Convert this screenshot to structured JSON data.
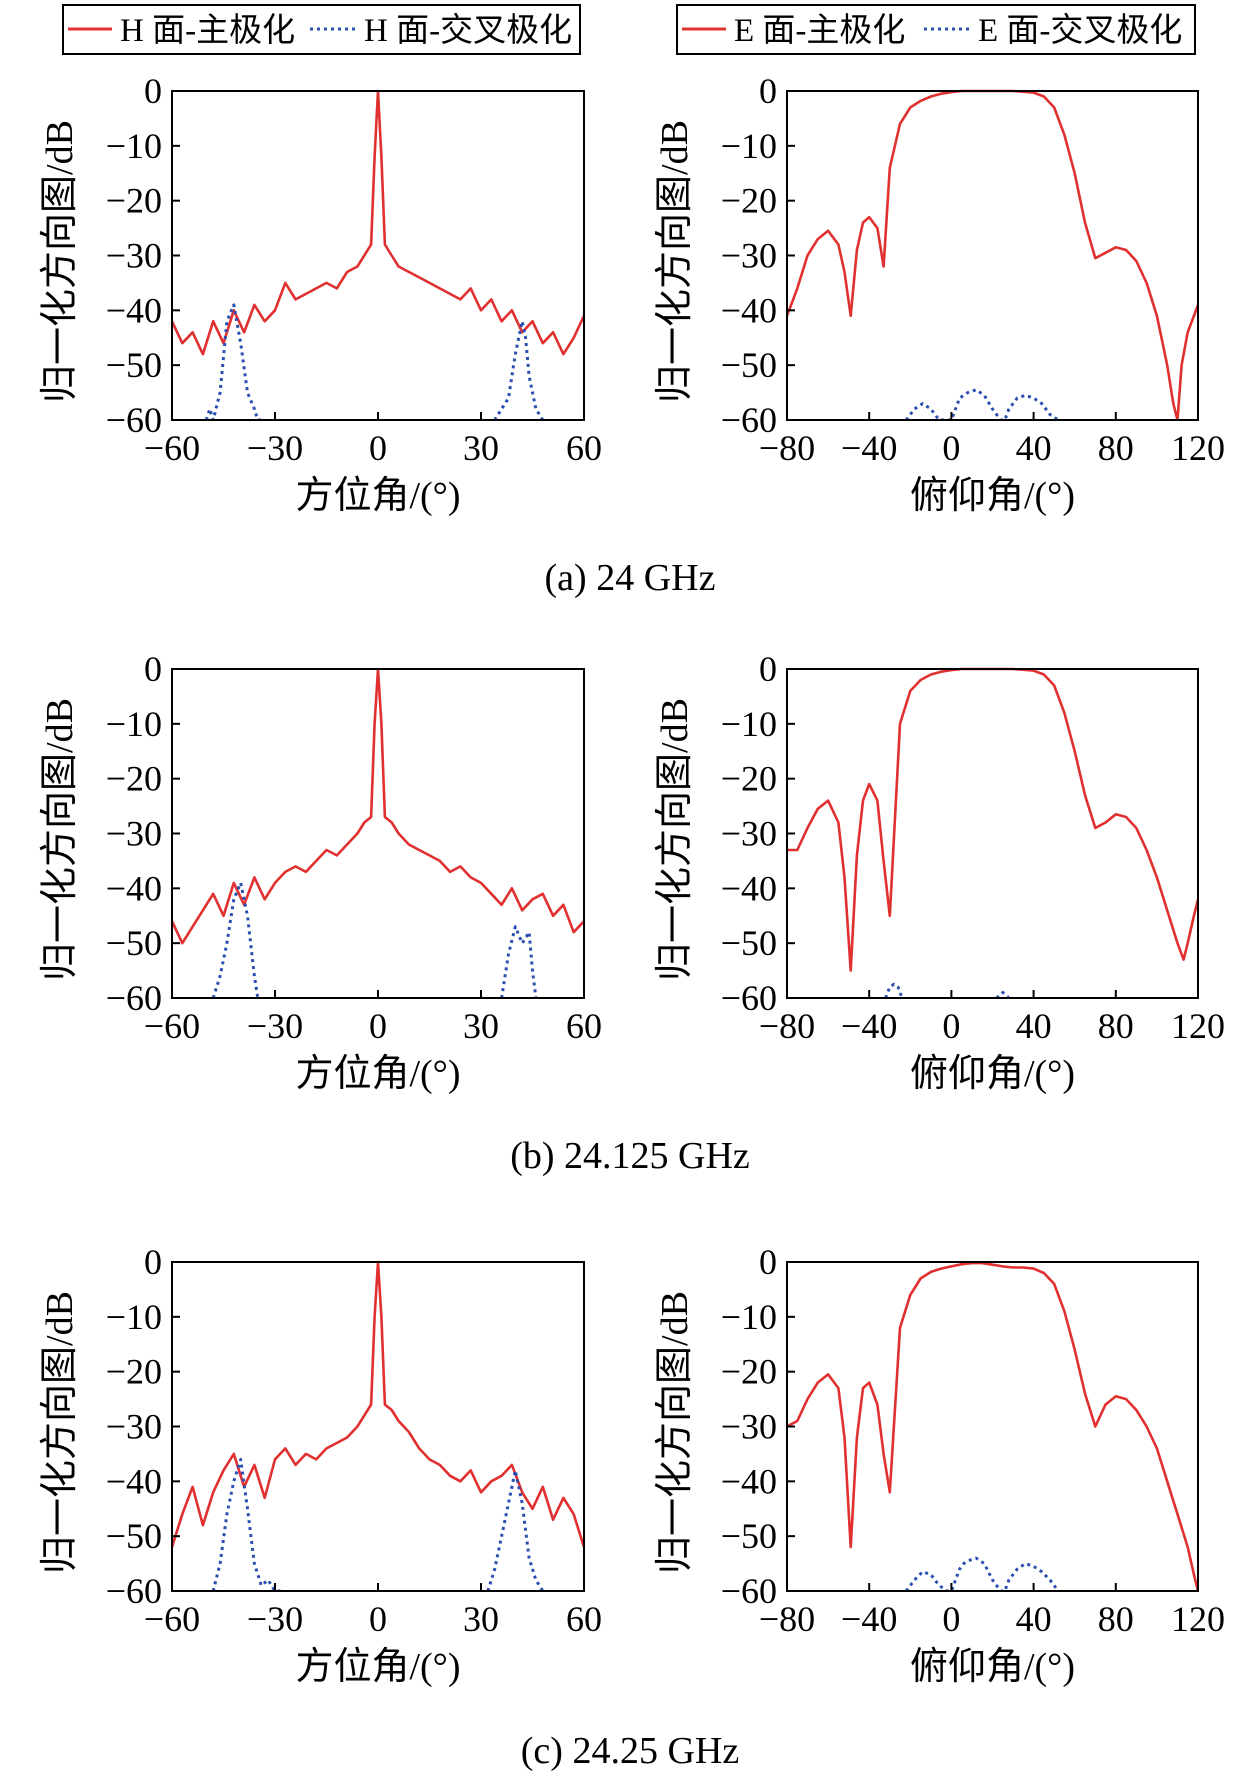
{
  "legend_h": {
    "main_label": "H 面-主极化",
    "cross_label": "H 面-交叉极化"
  },
  "legend_e": {
    "main_label": "E 面-主极化",
    "cross_label": "E 面-交叉极化"
  },
  "colors": {
    "main": "#e03030",
    "cross": "#2a4fb0"
  },
  "chart_data": [
    {
      "id": "a-h",
      "type": "line",
      "caption": "(a) 24 GHz",
      "xlabel": "方位角/(°)",
      "ylabel": "归一化方向图/dB",
      "xlim": [
        -60,
        60
      ],
      "ylim": [
        -60,
        0
      ],
      "xticks": [
        -60,
        -30,
        0,
        30,
        60
      ],
      "yticks": [
        0,
        -10,
        -20,
        -30,
        -40,
        -50,
        -60
      ],
      "series": [
        {
          "name": "H 面-主极化",
          "style": "solid",
          "x": [
            -60,
            -57,
            -54,
            -51,
            -48,
            -45,
            -42,
            -39,
            -36,
            -33,
            -30,
            -27,
            -24,
            -21,
            -18,
            -15,
            -12,
            -9,
            -6,
            -4,
            -2,
            -1,
            0,
            1,
            2,
            4,
            6,
            9,
            12,
            15,
            18,
            21,
            24,
            27,
            30,
            33,
            36,
            39,
            42,
            45,
            48,
            51,
            54,
            57,
            60
          ],
          "y": [
            -42,
            -46,
            -44,
            -48,
            -42,
            -46,
            -40,
            -44,
            -39,
            -42,
            -40,
            -35,
            -38,
            -37,
            -36,
            -35,
            -36,
            -33,
            -32,
            -30,
            -28,
            -12,
            0,
            -12,
            -28,
            -30,
            -32,
            -33,
            -34,
            -35,
            -36,
            -37,
            -38,
            -36,
            -40,
            -38,
            -42,
            -40,
            -44,
            -42,
            -46,
            -44,
            -48,
            -45,
            -41
          ]
        },
        {
          "name": "H 面-交叉极化",
          "style": "dotted",
          "x": [
            -50,
            -49,
            -48,
            -46,
            -44,
            -42,
            -40,
            -38,
            -36,
            -35,
            -34
          ],
          "y": [
            -60,
            -58,
            -60,
            -55,
            -42,
            -39,
            -46,
            -55,
            -58,
            -60,
            -60
          ]
        },
        {
          "name": "H 面-交叉极化",
          "style": "dotted",
          "x": [
            34,
            36,
            38,
            40,
            42,
            43,
            44,
            46,
            48
          ],
          "y": [
            -60,
            -58,
            -56,
            -48,
            -42,
            -45,
            -52,
            -58,
            -60
          ]
        }
      ]
    },
    {
      "id": "a-e",
      "type": "line",
      "caption": "",
      "xlabel": "俯仰角/(°)",
      "ylabel": "归一化方向图/dB",
      "xlim": [
        -80,
        120
      ],
      "ylim": [
        -60,
        0
      ],
      "xticks": [
        -80,
        -40,
        0,
        40,
        80,
        120
      ],
      "yticks": [
        0,
        -10,
        -20,
        -30,
        -40,
        -50,
        -60
      ],
      "series": [
        {
          "name": "E 面-主极化",
          "style": "solid",
          "x": [
            -80,
            -75,
            -70,
            -65,
            -60,
            -55,
            -52,
            -49,
            -46,
            -43,
            -40,
            -36,
            -33,
            -30,
            -25,
            -20,
            -15,
            -10,
            -5,
            0,
            5,
            10,
            20,
            30,
            40,
            45,
            50,
            55,
            60,
            65,
            70,
            75,
            80,
            85,
            90,
            95,
            100,
            105,
            108,
            110,
            112,
            115,
            120
          ],
          "y": [
            -41,
            -36,
            -30,
            -27,
            -25.5,
            -28,
            -33,
            -41,
            -29,
            -24,
            -23,
            -25,
            -32,
            -14,
            -6,
            -3,
            -1.8,
            -1,
            -0.5,
            -0.2,
            0,
            0,
            0,
            0,
            -0.3,
            -1,
            -3,
            -8,
            -15,
            -24,
            -30.5,
            -29.5,
            -28.5,
            -29,
            -31,
            -35,
            -41,
            -50,
            -57,
            -60,
            -50,
            -44,
            -39
          ]
        },
        {
          "name": "E 面-交叉极化",
          "style": "dotted",
          "x": [
            -22,
            -18,
            -14,
            -10,
            -6,
            -2,
            0,
            2,
            4,
            6,
            8,
            12,
            16,
            20,
            24,
            26,
            28,
            32,
            36,
            40,
            44,
            48,
            52
          ],
          "y": [
            -60,
            -58,
            -57,
            -58,
            -60,
            -60,
            -60,
            -58,
            -56,
            -55.5,
            -55,
            -54.5,
            -55.5,
            -58,
            -60,
            -60,
            -58,
            -56,
            -55.5,
            -56,
            -57,
            -59,
            -60
          ]
        }
      ]
    },
    {
      "id": "b-h",
      "type": "line",
      "caption": "(b) 24.125 GHz",
      "xlabel": "方位角/(°)",
      "ylabel": "归一化方向图/dB",
      "xlim": [
        -60,
        60
      ],
      "ylim": [
        -60,
        0
      ],
      "xticks": [
        -60,
        -30,
        0,
        30,
        60
      ],
      "yticks": [
        0,
        -10,
        -20,
        -30,
        -40,
        -50,
        -60
      ],
      "series": [
        {
          "name": "H 面-主极化",
          "style": "solid",
          "x": [
            -60,
            -57,
            -54,
            -51,
            -48,
            -45,
            -42,
            -39,
            -36,
            -33,
            -30,
            -27,
            -24,
            -21,
            -18,
            -15,
            -12,
            -9,
            -6,
            -4,
            -2,
            -1,
            0,
            1,
            2,
            4,
            6,
            9,
            12,
            15,
            18,
            21,
            24,
            27,
            30,
            33,
            36,
            39,
            42,
            45,
            48,
            51,
            54,
            57,
            60
          ],
          "y": [
            -46,
            -50,
            -47,
            -44,
            -41,
            -45,
            -39,
            -43,
            -38,
            -42,
            -39,
            -37,
            -36,
            -37,
            -35,
            -33,
            -34,
            -32,
            -30,
            -28,
            -27,
            -10,
            0,
            -10,
            -27,
            -28,
            -30,
            -32,
            -33,
            -34,
            -35,
            -37,
            -36,
            -38,
            -39,
            -41,
            -43,
            -40,
            -44,
            -42,
            -41,
            -45,
            -43,
            -48,
            -46
          ]
        },
        {
          "name": "H 面-交叉极化",
          "style": "dotted",
          "x": [
            -48,
            -46,
            -44,
            -42,
            -40,
            -38,
            -36,
            -35
          ],
          "y": [
            -60,
            -56,
            -50,
            -42,
            -39,
            -45,
            -56,
            -60
          ]
        },
        {
          "name": "H 面-交叉极化",
          "style": "dotted",
          "x": [
            36,
            38,
            40,
            42,
            44,
            45,
            46
          ],
          "y": [
            -60,
            -52,
            -47,
            -50,
            -48,
            -55,
            -60
          ]
        }
      ]
    },
    {
      "id": "b-e",
      "type": "line",
      "caption": "",
      "xlabel": "俯仰角/(°)",
      "ylabel": "归一化方向图/dB",
      "xlim": [
        -80,
        120
      ],
      "ylim": [
        -60,
        0
      ],
      "xticks": [
        -80,
        -40,
        0,
        40,
        80,
        120
      ],
      "yticks": [
        0,
        -10,
        -20,
        -30,
        -40,
        -50,
        -60
      ],
      "series": [
        {
          "name": "E 面-主极化",
          "style": "solid",
          "x": [
            -80,
            -75,
            -70,
            -65,
            -60,
            -55,
            -52,
            -49,
            -46,
            -43,
            -40,
            -36,
            -33,
            -30,
            -25,
            -20,
            -15,
            -10,
            -5,
            0,
            5,
            10,
            20,
            30,
            40,
            45,
            50,
            55,
            60,
            65,
            70,
            75,
            80,
            85,
            90,
            95,
            100,
            105,
            110,
            113,
            115,
            118,
            120
          ],
          "y": [
            -33,
            -33,
            -29,
            -25.5,
            -24,
            -28,
            -38,
            -55,
            -34,
            -24,
            -21,
            -24,
            -35,
            -45,
            -10,
            -4,
            -2,
            -1,
            -0.5,
            -0.2,
            0,
            0,
            0,
            0,
            -0.3,
            -1,
            -3,
            -8,
            -15,
            -23,
            -29,
            -28,
            -26.5,
            -27,
            -29,
            -33,
            -38,
            -44,
            -50,
            -53,
            -50,
            -45,
            -42
          ]
        },
        {
          "name": "E 面-交叉极化",
          "style": "dotted",
          "x": [
            -32,
            -30,
            -28,
            -26,
            -24
          ],
          "y": [
            -60,
            -58,
            -57.5,
            -58,
            -60
          ]
        },
        {
          "name": "E 面-交叉极化",
          "style": "dotted",
          "x": [
            22,
            25,
            28
          ],
          "y": [
            -60,
            -59,
            -60
          ]
        }
      ]
    },
    {
      "id": "c-h",
      "type": "line",
      "caption": "(c) 24.25 GHz",
      "xlabel": "方位角/(°)",
      "ylabel": "归一化方向图/dB",
      "xlim": [
        -60,
        60
      ],
      "ylim": [
        -60,
        0
      ],
      "xticks": [
        -60,
        -30,
        0,
        30,
        60
      ],
      "yticks": [
        0,
        -10,
        -20,
        -30,
        -40,
        -50,
        -60
      ],
      "series": [
        {
          "name": "H 面-主极化",
          "style": "solid",
          "x": [
            -60,
            -57,
            -54,
            -51,
            -48,
            -45,
            -42,
            -39,
            -36,
            -33,
            -30,
            -27,
            -24,
            -21,
            -18,
            -15,
            -12,
            -9,
            -6,
            -4,
            -2,
            -1,
            0,
            1,
            2,
            4,
            6,
            9,
            12,
            15,
            18,
            21,
            24,
            27,
            30,
            33,
            36,
            39,
            42,
            45,
            48,
            51,
            54,
            57,
            60
          ],
          "y": [
            -52,
            -46,
            -41,
            -48,
            -42,
            -38,
            -35,
            -41,
            -37,
            -43,
            -36,
            -34,
            -37,
            -35,
            -36,
            -34,
            -33,
            -32,
            -30,
            -28,
            -26,
            -10,
            0,
            -10,
            -26,
            -27,
            -29,
            -31,
            -34,
            -36,
            -37,
            -39,
            -40,
            -38,
            -42,
            -40,
            -39,
            -37,
            -42,
            -45,
            -41,
            -47,
            -43,
            -46,
            -52
          ]
        },
        {
          "name": "H 面-交叉极化",
          "style": "dotted",
          "x": [
            -48,
            -46,
            -44,
            -42,
            -40,
            -38,
            -36,
            -34,
            -32,
            -30,
            -28
          ],
          "y": [
            -60,
            -55,
            -46,
            -40,
            -36,
            -45,
            -55,
            -59,
            -58,
            -60,
            -60
          ]
        },
        {
          "name": "H 面-交叉极化",
          "style": "dotted",
          "x": [
            32,
            34,
            36,
            38,
            40,
            42,
            44,
            46,
            48
          ],
          "y": [
            -60,
            -56,
            -50,
            -44,
            -38,
            -44,
            -54,
            -58,
            -60
          ]
        }
      ]
    },
    {
      "id": "c-e",
      "type": "line",
      "caption": "",
      "xlabel": "俯仰角/(°)",
      "ylabel": "归一化方向图/dB",
      "xlim": [
        -80,
        120
      ],
      "ylim": [
        -60,
        0
      ],
      "xticks": [
        -80,
        -40,
        0,
        40,
        80,
        120
      ],
      "yticks": [
        0,
        -10,
        -20,
        -30,
        -40,
        -50,
        -60
      ],
      "series": [
        {
          "name": "E 面-主极化",
          "style": "solid",
          "x": [
            -80,
            -75,
            -70,
            -65,
            -60,
            -55,
            -52,
            -49,
            -46,
            -43,
            -40,
            -36,
            -33,
            -30,
            -25,
            -20,
            -15,
            -10,
            -5,
            0,
            5,
            10,
            15,
            20,
            25,
            30,
            35,
            40,
            45,
            50,
            55,
            60,
            65,
            70,
            75,
            80,
            85,
            90,
            95,
            100,
            105,
            110,
            115,
            118,
            120
          ],
          "y": [
            -30,
            -29,
            -25,
            -22,
            -20.5,
            -23,
            -32,
            -52,
            -32,
            -23,
            -22,
            -26,
            -35,
            -42,
            -12,
            -6,
            -3,
            -1.8,
            -1.2,
            -0.8,
            -0.4,
            -0.2,
            -0.2,
            -0.5,
            -0.8,
            -1,
            -1,
            -1.2,
            -2,
            -4,
            -9,
            -16,
            -24,
            -30,
            -26,
            -24.5,
            -25,
            -27,
            -30,
            -34,
            -40,
            -46,
            -52,
            -57,
            -60
          ]
        },
        {
          "name": "E 面-交叉极化",
          "style": "dotted",
          "x": [
            -22,
            -18,
            -14,
            -10,
            -6,
            -2,
            0,
            2,
            4,
            6,
            8,
            12,
            16,
            20,
            24,
            26,
            28,
            32,
            36,
            40,
            44,
            48,
            52
          ],
          "y": [
            -60,
            -58,
            -56.5,
            -57,
            -59,
            -60,
            -60,
            -58,
            -56,
            -55,
            -54.5,
            -54,
            -55,
            -58,
            -60,
            -60,
            -58,
            -56,
            -55,
            -55.5,
            -56.5,
            -58,
            -60
          ]
        }
      ]
    }
  ]
}
